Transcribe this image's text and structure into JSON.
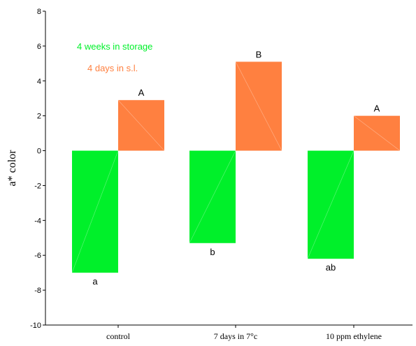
{
  "chart_data": {
    "type": "bar",
    "categories": [
      "control",
      "7 days in 7°c",
      "10 ppm ethylene"
    ],
    "series": [
      {
        "name": "4 weeks in storage",
        "color": "#00f02a",
        "values": [
          -7.0,
          -5.3,
          -6.2
        ],
        "labels": [
          "a",
          "b",
          "ab"
        ]
      },
      {
        "name": "4 days in s.l.",
        "color": "#ff8040",
        "values": [
          2.9,
          5.1,
          2.0
        ],
        "labels": [
          "A",
          "B",
          "A"
        ]
      }
    ],
    "xlabel": "",
    "ylabel": "a* color",
    "ylim": [
      -10,
      8
    ],
    "yticks": [
      -10,
      -8,
      -6,
      -4,
      -2,
      0,
      2,
      4,
      6,
      8
    ],
    "grid": false,
    "legend_position": "top-left"
  }
}
